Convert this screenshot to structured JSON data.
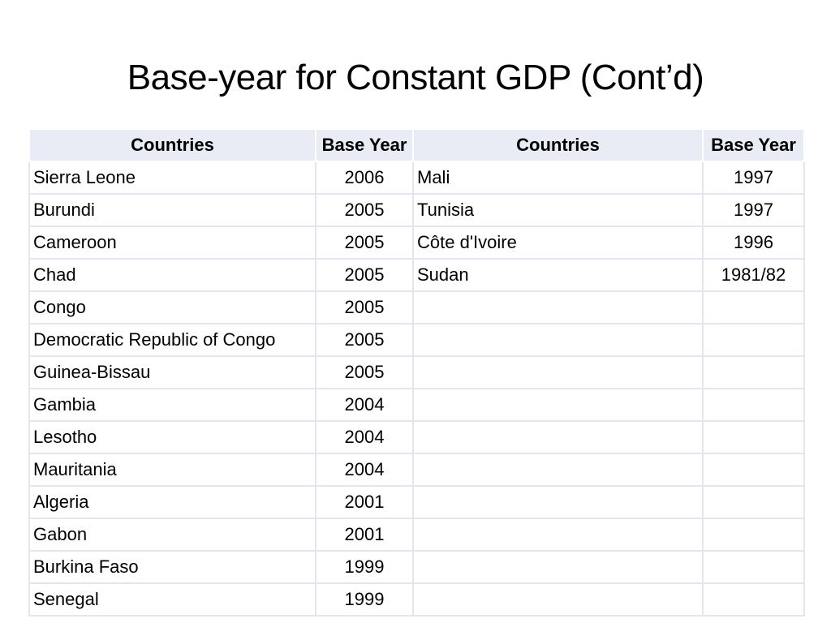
{
  "slide": {
    "title": "Base-year for Constant GDP (Cont’d)"
  },
  "table": {
    "headers": [
      "Countries",
      "Base Year",
      "Countries",
      "Base Year"
    ],
    "rows": [
      [
        "Sierra Leone",
        "2006",
        "Mali",
        "1997"
      ],
      [
        "Burundi",
        "2005",
        "Tunisia",
        "1997"
      ],
      [
        "Cameroon",
        "2005",
        "Côte d'Ivoire",
        "1996"
      ],
      [
        "Chad",
        "2005",
        "Sudan",
        "1981/82"
      ],
      [
        "Congo",
        "2005",
        "",
        ""
      ],
      [
        "Democratic Republic of Congo",
        "2005",
        "",
        ""
      ],
      [
        "Guinea-Bissau",
        "2005",
        "",
        ""
      ],
      [
        "Gambia",
        "2004",
        "",
        ""
      ],
      [
        "Lesotho",
        "2004",
        "",
        ""
      ],
      [
        "Mauritania",
        "2004",
        "",
        ""
      ],
      [
        "Algeria",
        "2001",
        "",
        ""
      ],
      [
        "Gabon",
        "2001",
        "",
        ""
      ],
      [
        "Burkina Faso",
        "1999",
        "",
        ""
      ],
      [
        "Senegal",
        "1999",
        "",
        ""
      ]
    ]
  },
  "colors": {
    "header_background": "#e9ebf5",
    "grid_line": "#e4e6ef",
    "text": "#000000"
  }
}
